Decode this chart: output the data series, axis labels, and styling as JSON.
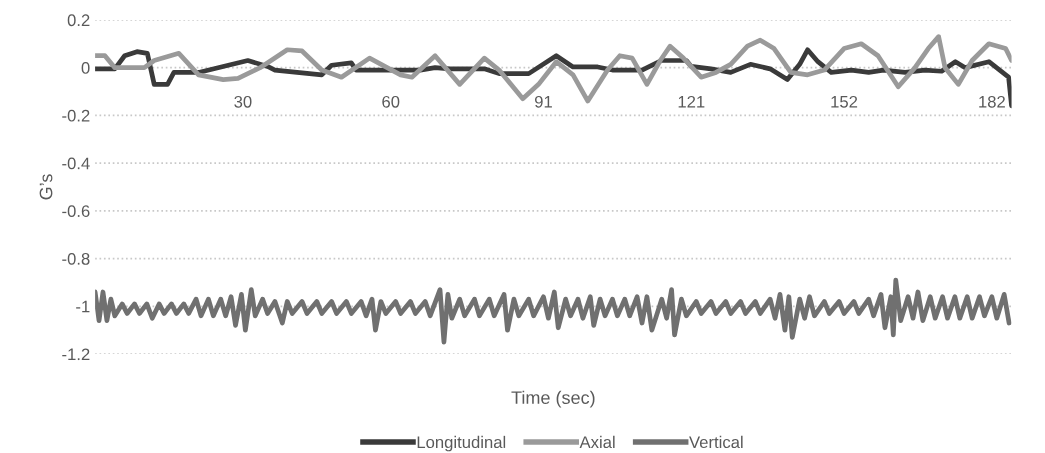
{
  "chart_data": {
    "type": "line",
    "xlabel": "Time (sec)",
    "ylabel": "G’s",
    "xlim": [
      0,
      186
    ],
    "xticks": [
      30,
      60,
      91,
      121,
      152,
      182
    ],
    "ylim": [
      -1.2,
      0.2
    ],
    "yticks": [
      -1.2,
      -1,
      -0.8,
      -0.6,
      -0.4,
      -0.2,
      0,
      0.2
    ],
    "grid": "y",
    "legend": "bottom",
    "marker": "none",
    "line_style": "solid",
    "series": [
      {
        "name": "Longitudinal",
        "color": "#3a3a3a",
        "x": [
          0,
          4,
          6,
          8.5,
          10.6,
          12,
          14.7,
          16,
          21,
          26,
          31,
          35,
          36.5,
          41,
          46,
          48,
          52,
          53,
          58,
          63,
          66,
          69,
          72,
          79,
          82,
          88,
          93.6,
          97,
          102,
          105,
          111,
          115,
          120,
          121,
          125,
          129,
          133,
          137,
          140.5,
          143,
          144.6,
          146.7,
          149.4,
          153.5,
          157,
          160,
          164.4,
          168.4,
          171.8,
          174.6,
          176.6,
          181.4,
          185.4,
          186
        ],
        "values": [
          -0.005,
          -0.005,
          0.05,
          0.067,
          0.06,
          -0.07,
          -0.07,
          -0.02,
          -0.02,
          0.005,
          0.03,
          0.005,
          -0.01,
          -0.02,
          -0.03,
          0.01,
          0.02,
          -0.01,
          -0.01,
          -0.01,
          -0.01,
          0.0,
          -0.005,
          -0.005,
          -0.025,
          -0.025,
          0.05,
          0.003,
          0.003,
          -0.01,
          -0.01,
          0.03,
          0.03,
          0.005,
          -0.005,
          -0.02,
          0.014,
          -0.005,
          -0.05,
          0.014,
          0.075,
          0.025,
          -0.02,
          -0.01,
          -0.02,
          -0.01,
          -0.02,
          -0.01,
          -0.015,
          0.025,
          0.0,
          0.025,
          -0.04,
          -0.16
        ]
      },
      {
        "name": "Axial",
        "color": "#9a9a9a",
        "x": [
          0,
          2,
          4,
          10,
          12,
          17,
          21,
          26,
          29,
          33.5,
          39,
          42,
          46,
          50,
          55.7,
          62,
          64.3,
          69,
          74,
          79,
          82,
          86.8,
          90,
          93.6,
          97,
          100,
          104,
          106.5,
          109,
          112,
          114.7,
          116.7,
          119.4,
          123,
          126,
          129,
          132.4,
          135,
          137.8,
          141.2,
          144.6,
          148,
          152,
          155.5,
          158.9,
          163,
          166.4,
          169.1,
          171.2,
          172.5,
          175.2,
          178,
          181.4,
          184.8,
          186
        ],
        "values": [
          0.05,
          0.05,
          0.0,
          0.0,
          0.03,
          0.06,
          -0.03,
          -0.05,
          -0.045,
          0.0,
          0.075,
          0.07,
          -0.01,
          -0.04,
          0.04,
          -0.03,
          -0.04,
          0.05,
          -0.07,
          0.04,
          -0.01,
          -0.13,
          -0.07,
          0.025,
          -0.03,
          -0.14,
          -0.01,
          0.05,
          0.04,
          -0.07,
          0.03,
          0.09,
          0.04,
          -0.04,
          -0.02,
          0.014,
          0.09,
          0.115,
          0.08,
          -0.02,
          -0.03,
          -0.01,
          0.08,
          0.1,
          0.05,
          -0.08,
          0.0,
          0.08,
          0.13,
          0.0,
          -0.07,
          0.03,
          0.1,
          0.08,
          0.03
        ]
      },
      {
        "name": "Vertical",
        "color": "#707070",
        "x": [
          0,
          0.8,
          1.6,
          2.4,
          3.2,
          4,
          5.5,
          6.5,
          8,
          9,
          10.5,
          11.6,
          13,
          14,
          15.5,
          16.5,
          18,
          19,
          20.5,
          21.5,
          23,
          24,
          25.5,
          26.5,
          27.6,
          28.5,
          29.7,
          30.5,
          31.7,
          32.5,
          34,
          35,
          36.5,
          38,
          39,
          40,
          42,
          43,
          45,
          46,
          48,
          49,
          51,
          52,
          54,
          55,
          56.2,
          56.9,
          58,
          59,
          61,
          62,
          64,
          65,
          67,
          68,
          70,
          70.8,
          71.6,
          72.4,
          74,
          75,
          77,
          78,
          80,
          81,
          83,
          83.7,
          85,
          86,
          88,
          89,
          91,
          92,
          93.2,
          94,
          95.5,
          96.5,
          98,
          99,
          100.5,
          101.2,
          102.5,
          103.5,
          105,
          106,
          107.5,
          108.5,
          110,
          111,
          112,
          113,
          115,
          116,
          117,
          117.6,
          119,
          120,
          122,
          123,
          125,
          126,
          128,
          129,
          131,
          132,
          134,
          135,
          137,
          138,
          139,
          140,
          140.8,
          141.5,
          143,
          144,
          145,
          146,
          148,
          149,
          151,
          152,
          154,
          155,
          157,
          158,
          159.5,
          160.3,
          161.5,
          162,
          162.5,
          163.5,
          165,
          166,
          167,
          168,
          169.5,
          170.5,
          172,
          173,
          174.5,
          175.5,
          177,
          178,
          179.5,
          180.5,
          182,
          183,
          184.5,
          185.5
        ],
        "values": [
          -0.94,
          -1.06,
          -0.94,
          -1.06,
          -0.97,
          -1.04,
          -0.99,
          -1.03,
          -0.99,
          -1.03,
          -0.99,
          -1.05,
          -0.99,
          -1.03,
          -0.99,
          -1.03,
          -0.99,
          -1.03,
          -0.97,
          -1.04,
          -0.97,
          -1.04,
          -0.97,
          -1.04,
          -0.96,
          -1.08,
          -0.95,
          -1.1,
          -0.93,
          -1.04,
          -0.97,
          -1.03,
          -0.98,
          -1.07,
          -0.98,
          -1.03,
          -0.98,
          -1.03,
          -0.98,
          -1.03,
          -0.98,
          -1.03,
          -0.98,
          -1.03,
          -0.98,
          -1.04,
          -0.97,
          -1.1,
          -0.98,
          -1.03,
          -0.98,
          -1.03,
          -0.98,
          -1.03,
          -0.98,
          -1.04,
          -0.93,
          -1.15,
          -0.95,
          -1.05,
          -0.97,
          -1.04,
          -0.97,
          -1.04,
          -0.97,
          -1.04,
          -0.95,
          -1.1,
          -0.97,
          -1.04,
          -0.97,
          -1.04,
          -0.96,
          -1.05,
          -0.94,
          -1.09,
          -0.97,
          -1.04,
          -0.97,
          -1.05,
          -0.96,
          -1.08,
          -0.97,
          -1.04,
          -0.97,
          -1.04,
          -0.97,
          -1.04,
          -0.96,
          -1.07,
          -0.96,
          -1.1,
          -0.97,
          -1.05,
          -0.93,
          -1.12,
          -0.97,
          -1.04,
          -0.98,
          -1.03,
          -0.98,
          -1.03,
          -0.98,
          -1.03,
          -0.98,
          -1.03,
          -0.98,
          -1.03,
          -0.97,
          -1.05,
          -0.95,
          -1.1,
          -0.96,
          -1.13,
          -0.97,
          -1.05,
          -0.96,
          -1.04,
          -0.98,
          -1.03,
          -0.98,
          -1.03,
          -0.98,
          -1.03,
          -0.97,
          -1.04,
          -0.95,
          -1.09,
          -0.96,
          -1.12,
          -0.89,
          -1.06,
          -0.96,
          -1.05,
          -0.94,
          -1.06,
          -0.96,
          -1.05,
          -0.96,
          -1.05,
          -0.96,
          -1.05,
          -0.96,
          -1.05,
          -0.96,
          -1.04,
          -0.96,
          -1.05,
          -0.95,
          -1.07
        ]
      }
    ]
  }
}
